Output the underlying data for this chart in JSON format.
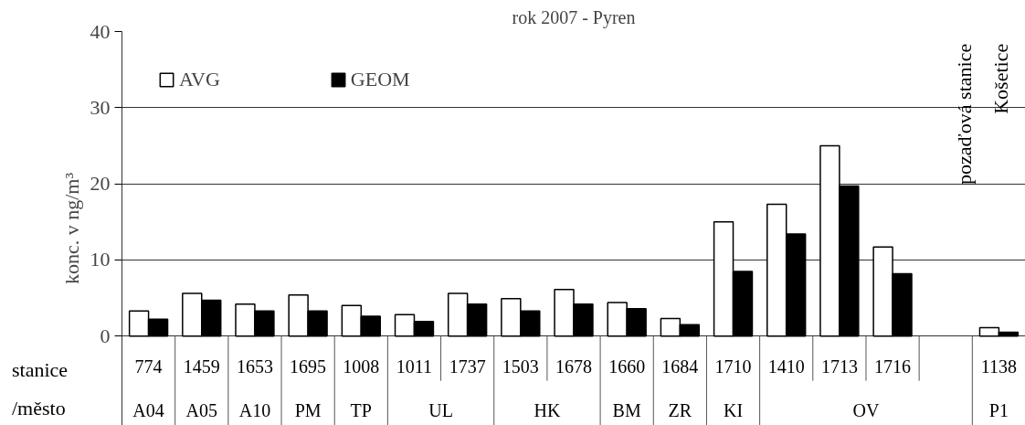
{
  "chart_data": {
    "type": "bar",
    "title": "rok 2007 - Pyren",
    "ylabel": "konc. v ng/m³",
    "categories": [
      "774",
      "1459",
      "1653",
      "1695",
      "1008",
      "1011",
      "1737",
      "1503",
      "1678",
      "1660",
      "1684",
      "1710",
      "1410",
      "1713",
      "1716",
      null,
      "1138"
    ],
    "series": [
      {
        "name": "AVG",
        "color": "#ffffff",
        "values": [
          3.3,
          5.6,
          4.2,
          5.4,
          4.0,
          2.8,
          5.6,
          4.9,
          6.1,
          4.4,
          2.3,
          15.0,
          17.3,
          25.0,
          11.7,
          null,
          1.1
        ]
      },
      {
        "name": "GEOM",
        "color": "#000000",
        "values": [
          2.2,
          4.7,
          3.3,
          3.3,
          2.6,
          1.9,
          4.2,
          3.3,
          4.2,
          3.6,
          1.5,
          8.5,
          13.4,
          19.7,
          8.2,
          null,
          0.5
        ]
      }
    ],
    "ylim": [
      0,
      40
    ],
    "yticks": [
      0,
      10,
      20,
      30,
      40
    ],
    "grid": "y",
    "legend": "top left",
    "annotations": [
      "stanice",
      "/město",
      "pozaďová stanice",
      "Košetice",
      "A04",
      "A05",
      "A10",
      "PM",
      "TP",
      "UL",
      "HK",
      "BM",
      "ZR",
      "KI",
      "OV",
      "P1"
    ]
  }
}
